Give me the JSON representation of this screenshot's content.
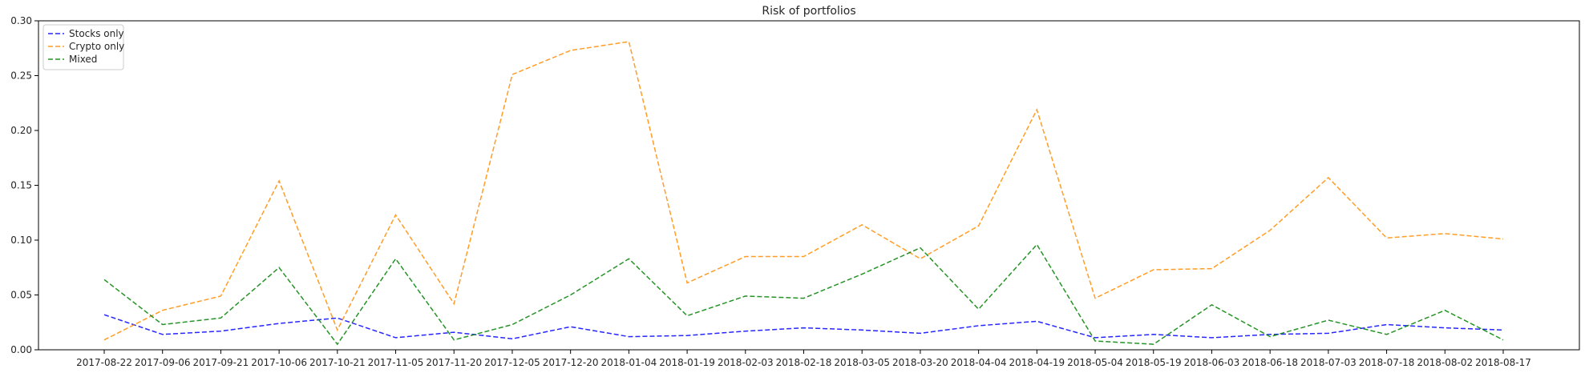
{
  "chart_data": {
    "type": "line",
    "title": "Risk of portfolios",
    "xlabel": "",
    "ylabel": "",
    "categories": [
      "2017-08-22",
      "2017-09-06",
      "2017-09-21",
      "2017-10-06",
      "2017-10-21",
      "2017-11-05",
      "2017-11-20",
      "2017-12-05",
      "2017-12-20",
      "2018-01-04",
      "2018-01-19",
      "2018-02-03",
      "2018-02-18",
      "2018-03-05",
      "2018-03-20",
      "2018-04-04",
      "2018-04-19",
      "2018-05-04",
      "2018-05-19",
      "2018-06-03",
      "2018-06-18",
      "2018-07-03",
      "2018-07-18",
      "2018-08-02",
      "2018-08-17"
    ],
    "ylim": [
      0,
      0.3
    ],
    "yticks": [
      "0.00",
      "0.05",
      "0.10",
      "0.15",
      "0.20",
      "0.25",
      "0.30"
    ],
    "line_style": "dashed",
    "grid": false,
    "legend_position": "top-left",
    "series": [
      {
        "name": "Stocks only",
        "color": "#0000ff",
        "values": [
          0.032,
          0.014,
          0.017,
          0.024,
          0.029,
          0.011,
          0.016,
          0.01,
          0.021,
          0.012,
          0.013,
          0.017,
          0.02,
          0.018,
          0.015,
          0.022,
          0.026,
          0.011,
          0.014,
          0.011,
          0.014,
          0.015,
          0.023,
          0.02,
          0.018
        ]
      },
      {
        "name": "Crypto only",
        "color": "#ff8c00",
        "values": [
          0.009,
          0.036,
          0.049,
          0.154,
          0.018,
          0.123,
          0.042,
          0.251,
          0.273,
          0.281,
          0.061,
          0.085,
          0.085,
          0.114,
          0.083,
          0.113,
          0.219,
          0.047,
          0.073,
          0.074,
          0.109,
          0.157,
          0.102,
          0.106,
          0.101
        ]
      },
      {
        "name": "Mixed",
        "color": "#008000",
        "values": [
          0.064,
          0.023,
          0.029,
          0.075,
          0.005,
          0.083,
          0.009,
          0.023,
          0.05,
          0.083,
          0.031,
          0.049,
          0.047,
          0.069,
          0.093,
          0.037,
          0.096,
          0.008,
          0.005,
          0.041,
          0.012,
          0.027,
          0.014,
          0.036,
          0.009
        ]
      }
    ]
  }
}
